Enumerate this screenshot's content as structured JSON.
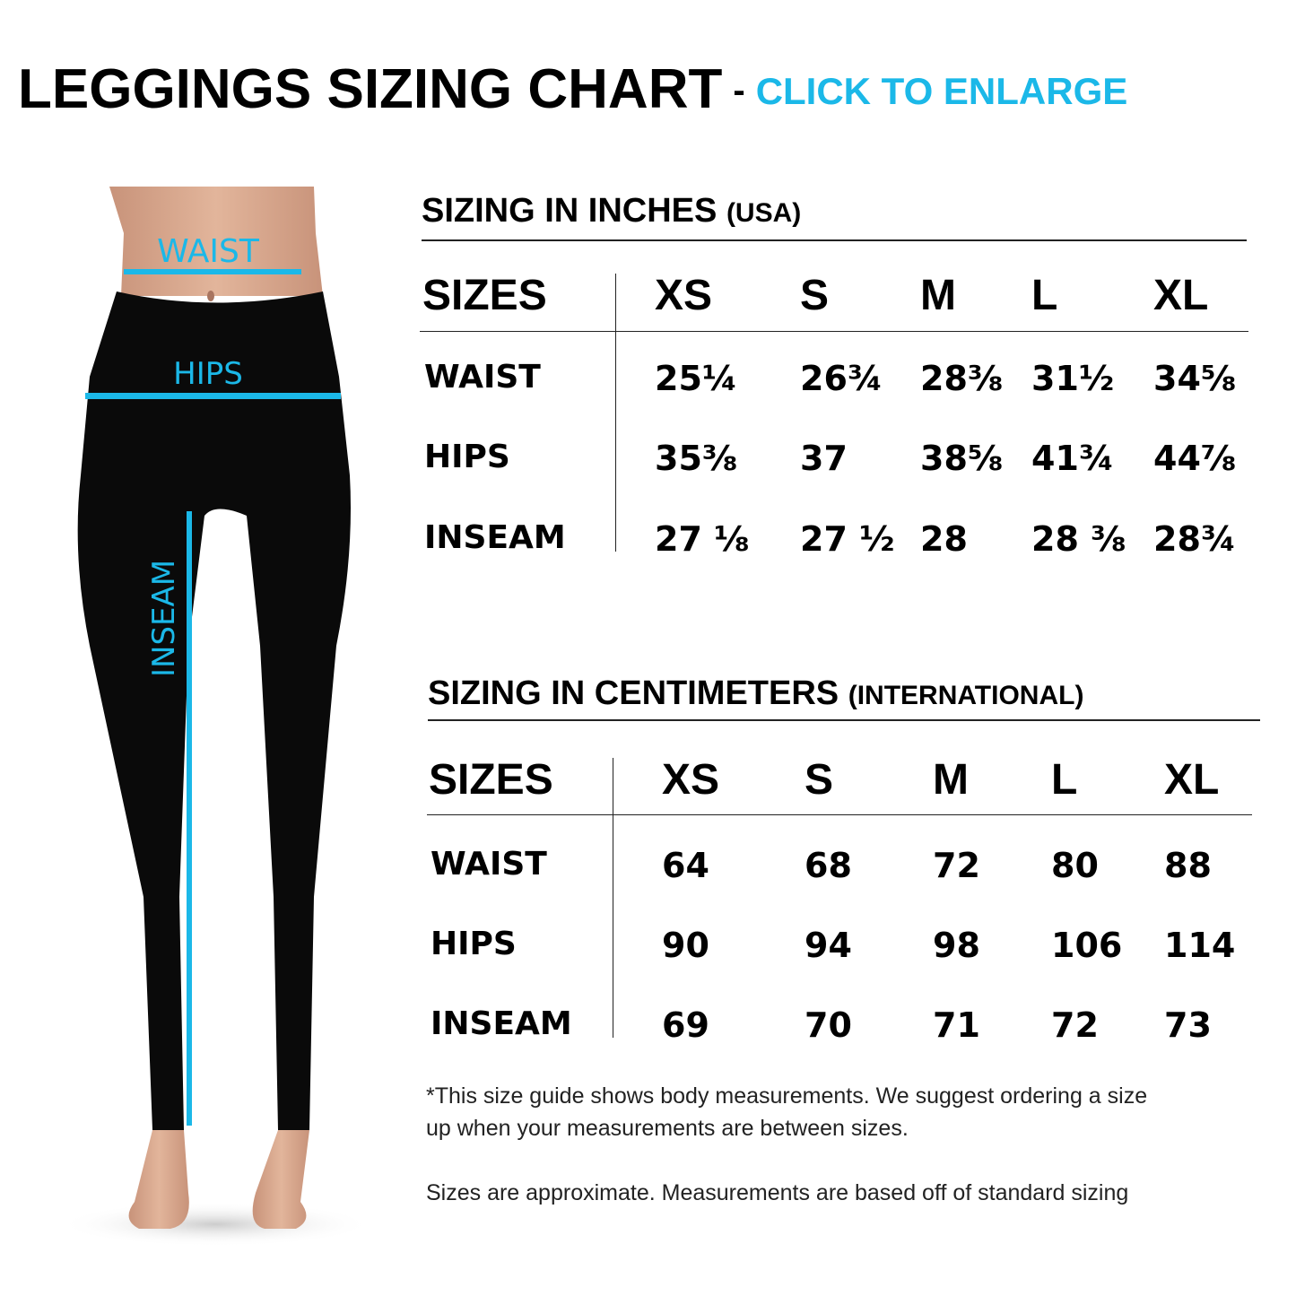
{
  "title": {
    "main": "LEGGINGS SIZING CHART",
    "separator": "-",
    "cta": "CLICK TO ENLARGE"
  },
  "colors": {
    "accent": "#1bb8e8",
    "leggings": "#0a0a0a",
    "skin": "#d9a98c"
  },
  "figure": {
    "waist_label": "WAIST",
    "hips_label": "HIPS",
    "inseam_label": "INSEAM"
  },
  "inches": {
    "heading": "SIZING IN INCHES",
    "heading_sub": "(USA)",
    "header": [
      "SIZES",
      "XS",
      "S",
      "M",
      "L",
      "XL"
    ],
    "rows": [
      {
        "label": "WAIST",
        "values": [
          "25¼",
          "26¾",
          "28⅜",
          "31½",
          "34⅝"
        ]
      },
      {
        "label": "HIPS",
        "values": [
          "35⅜",
          "37",
          "38⅝",
          "41¾",
          "44⅞"
        ]
      },
      {
        "label": "INSEAM",
        "values": [
          "27 ⅛",
          "27 ½",
          "28",
          "28 ⅜",
          "28¾"
        ]
      }
    ]
  },
  "centimeters": {
    "heading": "SIZING IN CENTIMETERS",
    "heading_sub": "(INTERNATIONAL)",
    "header": [
      "SIZES",
      "XS",
      "S",
      "M",
      "L",
      "XL"
    ],
    "rows": [
      {
        "label": "WAIST",
        "values": [
          "64",
          "68",
          "72",
          "80",
          "88"
        ]
      },
      {
        "label": "HIPS",
        "values": [
          "90",
          "94",
          "98",
          "106",
          "114"
        ]
      },
      {
        "label": "INSEAM",
        "values": [
          "69",
          "70",
          "71",
          "72",
          "73"
        ]
      }
    ]
  },
  "notes": {
    "line1": "*This size guide shows body measurements. We suggest ordering a size",
    "line2": "up when your measurements are between sizes.",
    "line3": "Sizes are approximate. Measurements are based off of standard sizing"
  }
}
